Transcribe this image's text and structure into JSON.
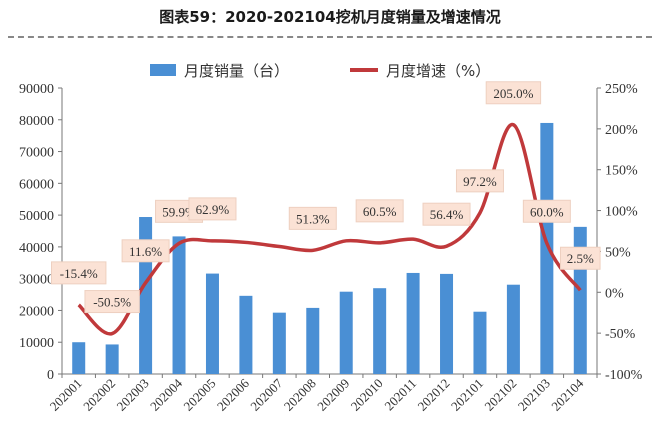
{
  "chart_data": {
    "type": "bar+line",
    "title": "图表59：2020-202104挖机月度销量及增速情况",
    "categories": [
      "202001",
      "202002",
      "202003",
      "202004",
      "202005",
      "202006",
      "202007",
      "202008",
      "202009",
      "202010",
      "202011",
      "202012",
      "202101",
      "202102",
      "202103",
      "202104"
    ],
    "series": [
      {
        "name": "月度销量（台）",
        "type": "bar",
        "axis": "left",
        "color": "#4a8fd4",
        "values": [
          10000,
          9300,
          49400,
          43300,
          31600,
          24600,
          19300,
          20800,
          25900,
          27000,
          31800,
          31500,
          19600,
          28100,
          79000,
          46300
        ]
      },
      {
        "name": "月度增速（%）",
        "type": "line",
        "axis": "right",
        "color": "#c0393b",
        "values": [
          -15.4,
          -50.5,
          11.6,
          59.9,
          62.9,
          61,
          56,
          51.3,
          63,
          60.5,
          65,
          56.4,
          97.2,
          205.0,
          60.0,
          2.5
        ],
        "labels": [
          "-15.4%",
          "-50.5%",
          "11.6%",
          "59.9%",
          "62.9%",
          null,
          null,
          "51.3%",
          null,
          "60.5%",
          null,
          "56.4%",
          "97.2%",
          "205.0%",
          "60.0%",
          "2.5%"
        ]
      }
    ],
    "left_axis": {
      "ylim": [
        0,
        90000
      ],
      "ticks": [
        "0",
        "10000",
        "20000",
        "30000",
        "40000",
        "50000",
        "60000",
        "70000",
        "80000",
        "90000"
      ]
    },
    "right_axis": {
      "ylim": [
        -100,
        250
      ],
      "ticks": [
        "-100%",
        "-50%",
        "0%",
        "50%",
        "100%",
        "150%",
        "200%",
        "250%"
      ]
    },
    "legend": "top-center",
    "grid": false
  }
}
